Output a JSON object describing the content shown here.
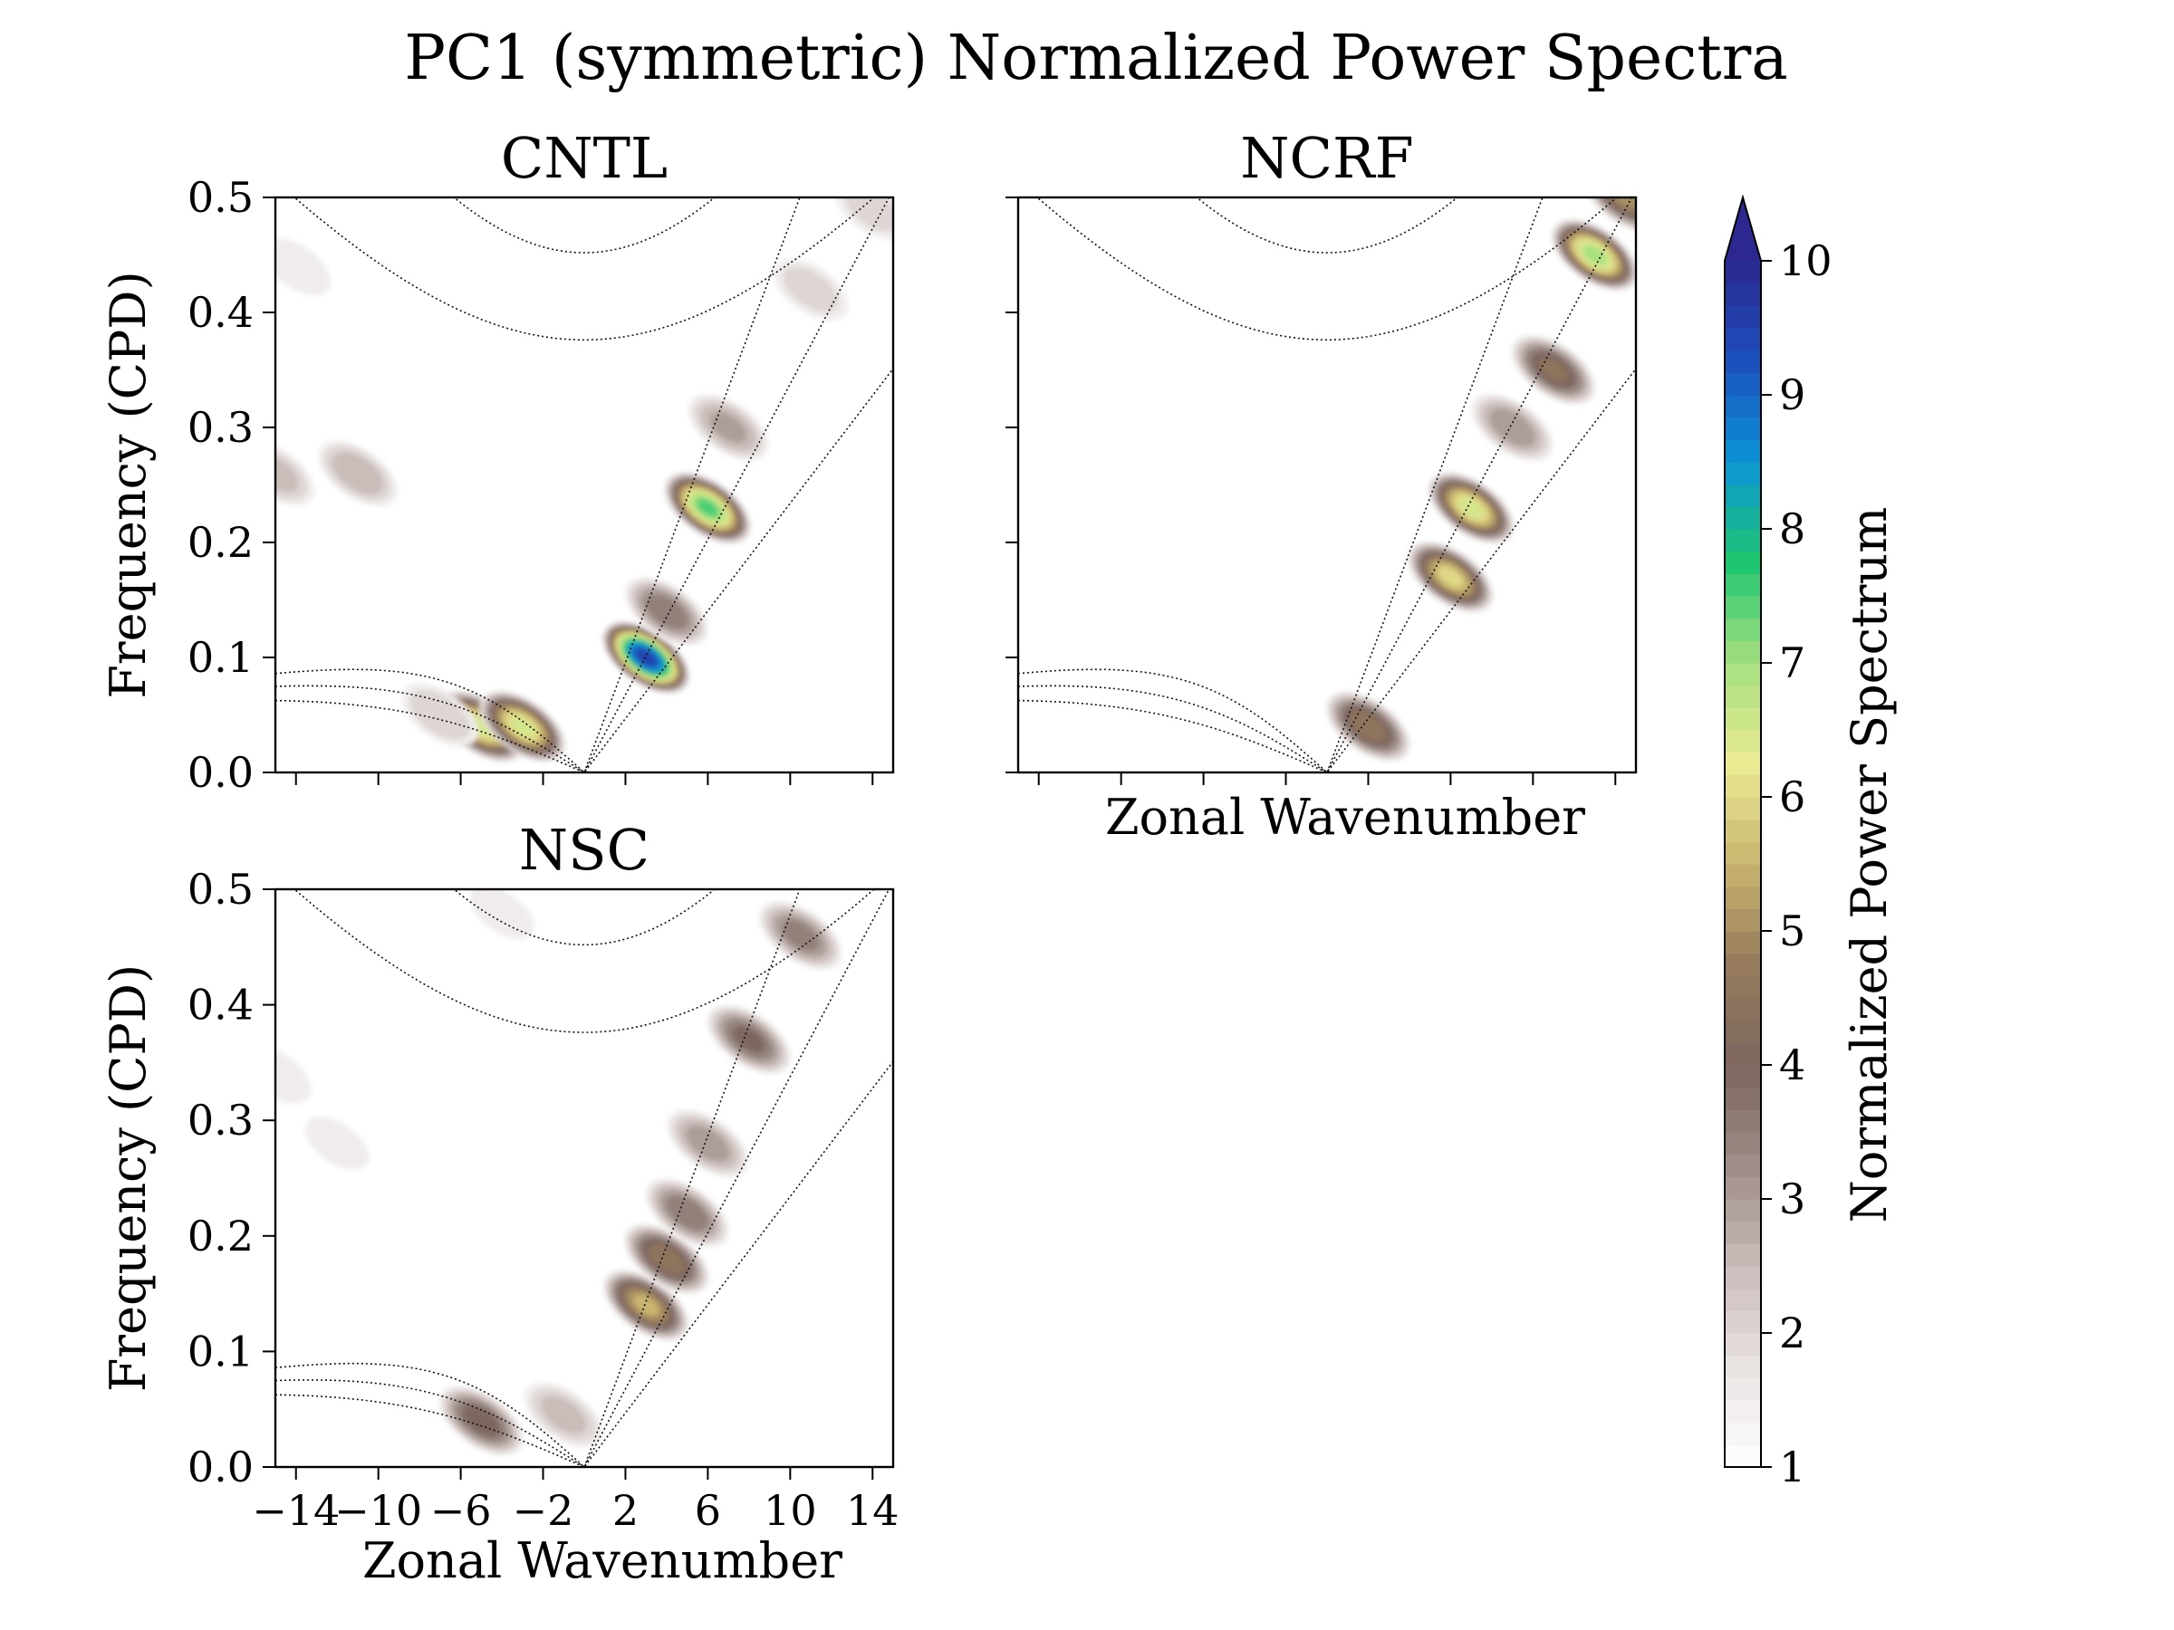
{
  "figure_title": "PC1 (symmetric) Normalized Power Spectra",
  "colorbar": {
    "label": "Normalized Power Spectrum",
    "ticks": [
      "1",
      "2",
      "3",
      "4",
      "5",
      "6",
      "7",
      "8",
      "9",
      "10"
    ],
    "vmin": 1,
    "vmax": 10,
    "extend": "max",
    "colors": [
      "#ffffff",
      "#e9e3e2",
      "#c9bcb9",
      "#9e8d88",
      "#7d665e",
      "#967a5c",
      "#c9b56f",
      "#eaea93",
      "#a7e07f",
      "#1fc670",
      "#0c94d6",
      "#1c50bd",
      "#2c2890"
    ]
  },
  "chart_data": [
    {
      "type": "heatmap",
      "title": "CNTL",
      "xlabel": "",
      "ylabel": "Frequency (CPD)",
      "xlim": [
        -15,
        15
      ],
      "ylim": [
        0,
        0.5
      ],
      "xticks": [
        "-14",
        "-10",
        "-6",
        "-2",
        "2",
        "6",
        "10",
        "14"
      ],
      "show_xticklabels": false,
      "yticks": [
        "0.0",
        "0.1",
        "0.2",
        "0.3",
        "0.4",
        "0.5"
      ],
      "show_yticklabels": true,
      "spectral_peaks": [
        {
          "k": 3,
          "f": 0.1,
          "power": 9.5
        },
        {
          "k": 6,
          "f": 0.23,
          "power": 7.5
        },
        {
          "k": -5,
          "f": 0.04,
          "power": 6.5
        },
        {
          "k": -3,
          "f": 0.04,
          "power": 6.5
        },
        {
          "k": 4,
          "f": 0.14,
          "power": 3.8
        },
        {
          "k": 7,
          "f": 0.3,
          "power": 3.0
        },
        {
          "k": -15,
          "f": 0.26,
          "power": 2.6
        },
        {
          "k": -11,
          "f": 0.26,
          "power": 2.8
        },
        {
          "k": 11,
          "f": 0.42,
          "power": 2.2
        },
        {
          "k": -14,
          "f": 0.44,
          "power": 1.8
        },
        {
          "k": 14,
          "f": 0.49,
          "power": 2.2
        },
        {
          "k": -7,
          "f": 0.05,
          "power": 2.4
        }
      ]
    },
    {
      "type": "heatmap",
      "title": "NCRF",
      "xlabel": "Zonal Wavenumber",
      "ylabel": "",
      "xlim": [
        -15,
        15
      ],
      "ylim": [
        0,
        0.5
      ],
      "xticks": [
        "-14",
        "-10",
        "-6",
        "-2",
        "2",
        "6",
        "10",
        "14"
      ],
      "show_xticklabels": false,
      "yticks": [
        "0.0",
        "0.1",
        "0.2",
        "0.3",
        "0.4",
        "0.5"
      ],
      "show_yticklabels": false,
      "spectral_peaks": [
        {
          "k": 13,
          "f": 0.45,
          "power": 7.0
        },
        {
          "k": 14.5,
          "f": 0.5,
          "power": 5.0
        },
        {
          "k": 7,
          "f": 0.23,
          "power": 6.5
        },
        {
          "k": 6,
          "f": 0.17,
          "power": 6.0
        },
        {
          "k": 11,
          "f": 0.35,
          "power": 4.5
        },
        {
          "k": 9,
          "f": 0.3,
          "power": 3.3
        },
        {
          "k": 2,
          "f": 0.04,
          "power": 4.8
        }
      ]
    },
    {
      "type": "heatmap",
      "title": "NSC",
      "xlabel": "Zonal Wavenumber",
      "ylabel": "Frequency (CPD)",
      "xlim": [
        -15,
        15
      ],
      "ylim": [
        0,
        0.5
      ],
      "xticks": [
        "-14",
        "-10",
        "-6",
        "-2",
        "2",
        "6",
        "10",
        "14"
      ],
      "show_xticklabels": true,
      "yticks": [
        "0.0",
        "0.1",
        "0.2",
        "0.3",
        "0.4",
        "0.5"
      ],
      "show_yticklabels": true,
      "spectral_peaks": [
        {
          "k": 3,
          "f": 0.14,
          "power": 5.5
        },
        {
          "k": 4,
          "f": 0.18,
          "power": 4.8
        },
        {
          "k": 5,
          "f": 0.22,
          "power": 3.8
        },
        {
          "k": 6,
          "f": 0.28,
          "power": 3.2
        },
        {
          "k": 8,
          "f": 0.37,
          "power": 4.0
        },
        {
          "k": 10.5,
          "f": 0.46,
          "power": 3.6
        },
        {
          "k": -5,
          "f": 0.04,
          "power": 4.2
        },
        {
          "k": -1,
          "f": 0.045,
          "power": 2.6
        },
        {
          "k": -15,
          "f": 0.34,
          "power": 1.9
        },
        {
          "k": -12,
          "f": 0.28,
          "power": 1.6
        },
        {
          "k": -4,
          "f": 0.48,
          "power": 1.6
        }
      ]
    }
  ]
}
